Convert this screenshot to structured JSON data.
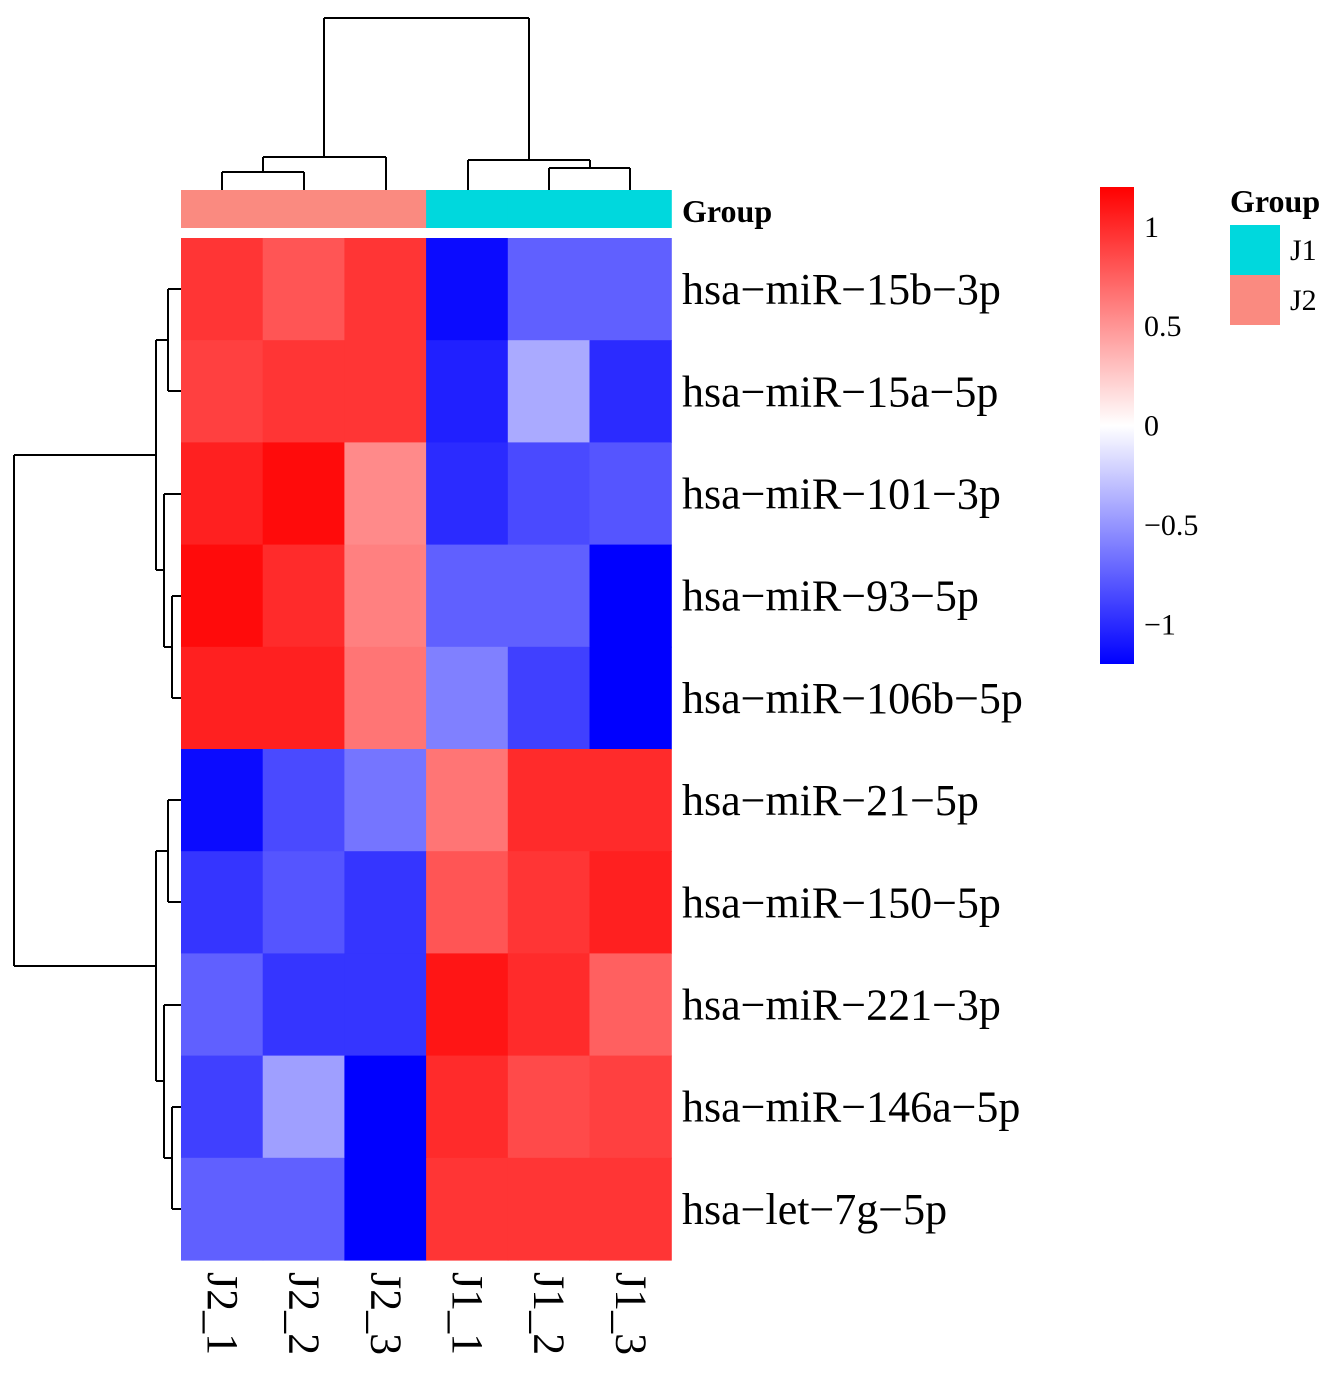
{
  "chart_data": {
    "type": "heatmap",
    "rows": [
      "hsa−miR−15b−3p",
      "hsa−miR−15a−5p",
      "hsa−miR−101−3p",
      "hsa−miR−93−5p",
      "hsa−miR−106b−5p",
      "hsa−miR−21−5p",
      "hsa−miR−150−5p",
      "hsa−miR−221−3p",
      "hsa−miR−146a−5p",
      "hsa−let−7g−5p"
    ],
    "columns": [
      "J2_1",
      "J2_2",
      "J2_3",
      "J1_1",
      "J1_2",
      "J1_3"
    ],
    "column_groups": [
      "J2",
      "J2",
      "J2",
      "J1",
      "J1",
      "J1"
    ],
    "values": [
      [
        0.95,
        0.8,
        0.95,
        -1.15,
        -0.75,
        -0.75
      ],
      [
        0.9,
        0.95,
        0.95,
        -1.05,
        -0.4,
        -1.0
      ],
      [
        1.05,
        1.15,
        0.55,
        -1.0,
        -0.85,
        -0.8
      ],
      [
        1.15,
        1.0,
        0.6,
        -0.75,
        -0.75,
        -1.2
      ],
      [
        1.05,
        1.05,
        0.65,
        -0.6,
        -0.9,
        -1.2
      ],
      [
        -1.15,
        -0.85,
        -0.65,
        0.65,
        1.0,
        1.0
      ],
      [
        -0.95,
        -0.8,
        -0.95,
        0.8,
        0.95,
        1.05
      ],
      [
        -0.75,
        -0.95,
        -0.95,
        1.1,
        1.0,
        0.75
      ],
      [
        -0.9,
        -0.45,
        -1.2,
        1.0,
        0.85,
        0.9
      ],
      [
        -0.75,
        -0.75,
        -1.2,
        0.95,
        0.95,
        0.95
      ]
    ],
    "color_scale": {
      "min": -1.2,
      "mid": 0,
      "max": 1.2,
      "low_color": "#0000ff",
      "mid_color": "#ffffff",
      "high_color": "#ff0000",
      "ticks": [
        {
          "value": 1,
          "label": "1"
        },
        {
          "value": 0.5,
          "label": "0.5"
        },
        {
          "value": 0,
          "label": "0"
        },
        {
          "value": -0.5,
          "label": "−0.5"
        },
        {
          "value": -1,
          "label": "−1"
        }
      ]
    },
    "annotation": {
      "title": "Group",
      "legend_title": "Group",
      "legend": [
        {
          "label": "J1",
          "color": "#00d8dd"
        },
        {
          "label": "J2",
          "color": "#fa8a80"
        }
      ]
    }
  }
}
